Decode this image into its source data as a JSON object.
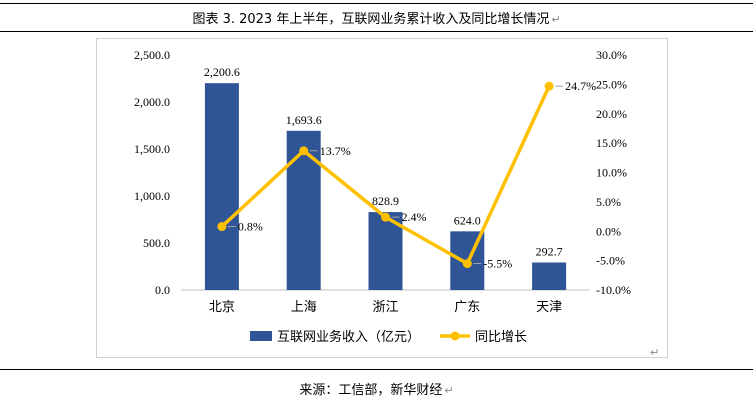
{
  "title": "图表 3.  2023 年上半年，互联网业务累计收入及同比增长情况",
  "source": "来源：工信部，新华财经",
  "chart_data": {
    "type": "bar+line",
    "categories": [
      "北京",
      "上海",
      "浙江",
      "广东",
      "天津"
    ],
    "series": [
      {
        "name": "互联网业务收入（亿元）",
        "type": "bar",
        "axis": "left",
        "color": "#2f5597",
        "values": [
          2200.6,
          1693.6,
          828.9,
          624.0,
          292.7
        ],
        "labels": [
          "2,200.6",
          "1,693.6",
          "828.9",
          "624.0",
          "292.7"
        ]
      },
      {
        "name": "同比增长",
        "type": "line",
        "axis": "right",
        "color": "#ffc000",
        "values": [
          0.8,
          13.7,
          2.4,
          -5.5,
          24.7
        ],
        "labels": [
          "0.8%",
          "13.7%",
          "2.4%",
          "-5.5%",
          "24.7%"
        ]
      }
    ],
    "y_left": {
      "min": 0,
      "max": 2500,
      "step": 500,
      "ticks": [
        "0.0",
        "500.0",
        "1,000.0",
        "1,500.0",
        "2,000.0",
        "2,500.0"
      ]
    },
    "y_right": {
      "min": -10,
      "max": 30,
      "step": 5,
      "ticks": [
        "-10.0%",
        "-5.0%",
        "0.0%",
        "5.0%",
        "10.0%",
        "15.0%",
        "20.0%",
        "25.0%",
        "30.0%"
      ]
    },
    "legend_position": "bottom",
    "grid": false
  }
}
